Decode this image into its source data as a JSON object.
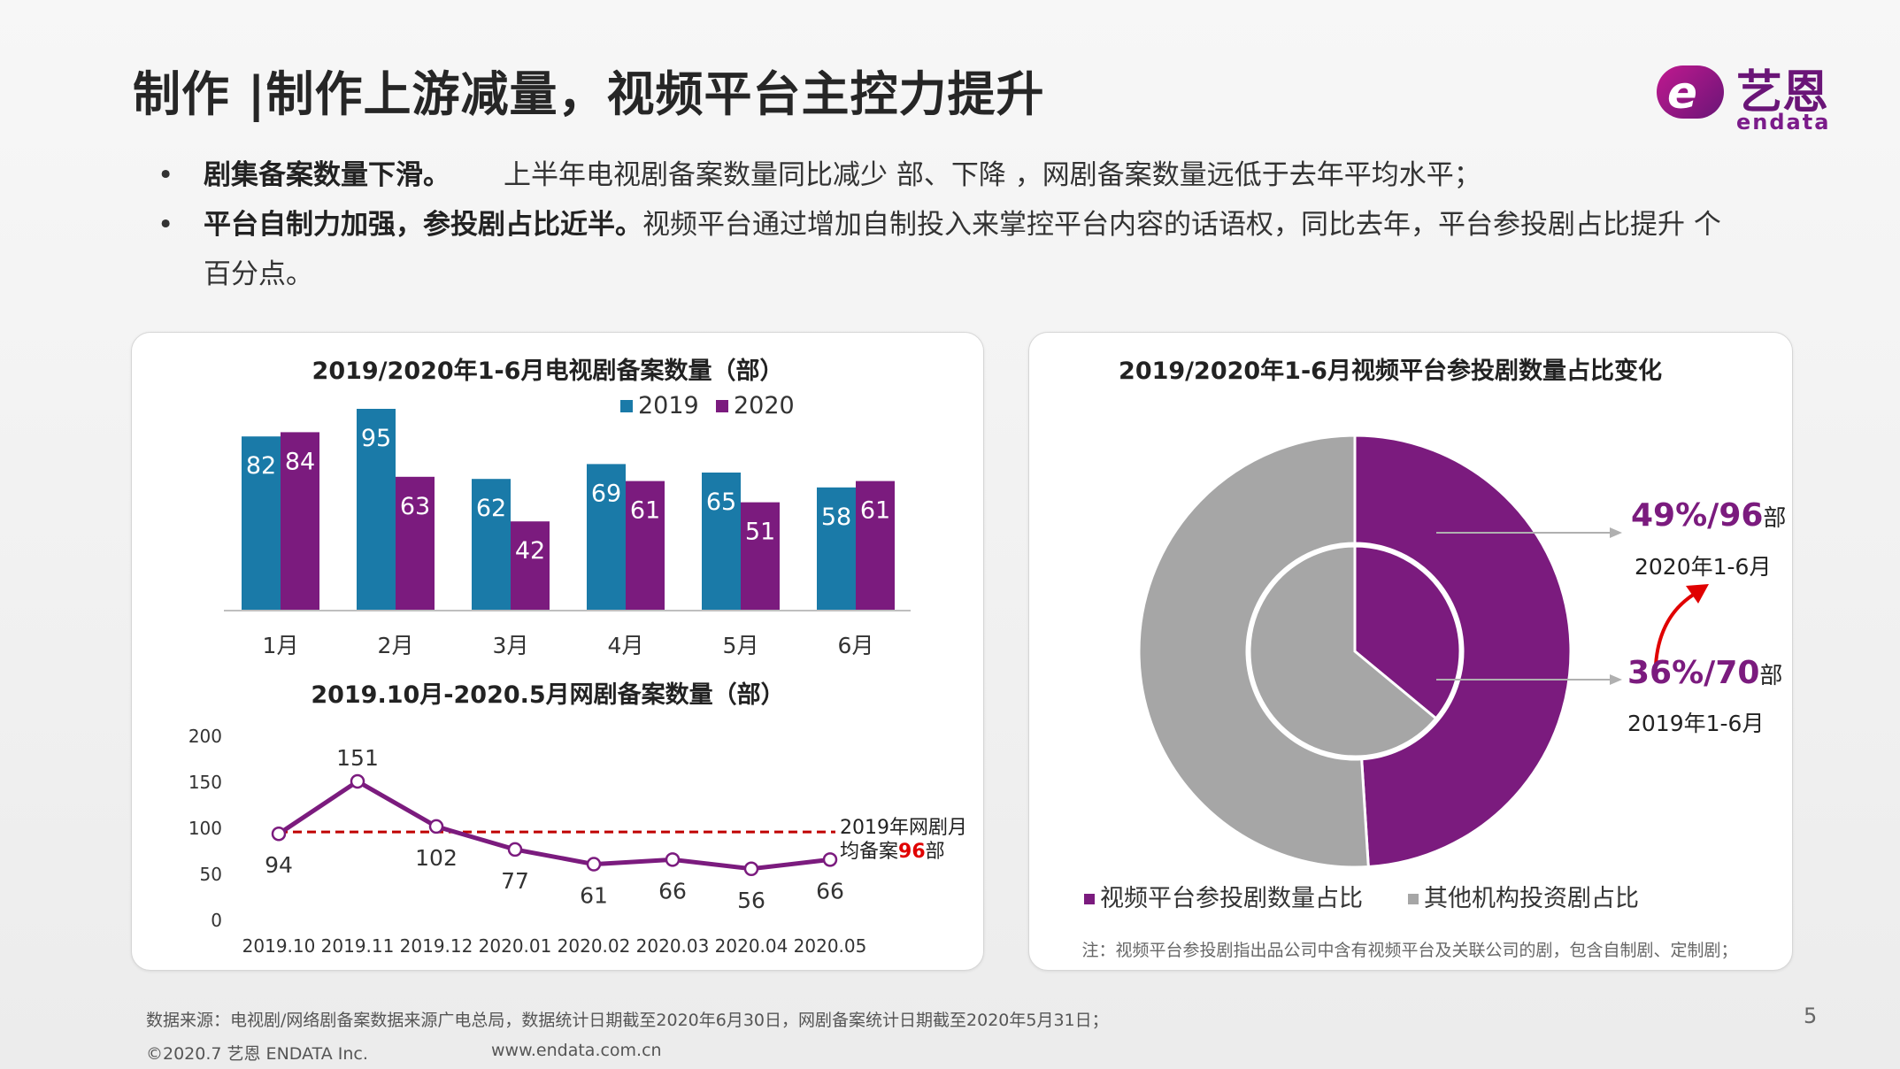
{
  "title": "制作 |制作上游减量，视频平台主控力提升",
  "logo": {
    "cn": "艺恩",
    "en": "endata",
    "mark": "e"
  },
  "bullets": [
    {
      "bold": "剧集备案数量下滑。",
      "text": "上半年电视剧备案数量同比减少 部、下降  ，网剧备案数量远低于去年平均水平；"
    },
    {
      "bold": "平台自制力加强，参投剧占比近半。",
      "text": "视频平台通过增加自制投入来掌控平台内容的话语权，同比去年，平台参投剧占比提升 个",
      "text2": "百分点。"
    }
  ],
  "chart_data": [
    {
      "type": "bar",
      "title": "2019/2020年1-6月电视剧备案数量（部）",
      "categories": [
        "1月",
        "2月",
        "3月",
        "4月",
        "5月",
        "6月"
      ],
      "series": [
        {
          "name": "2019",
          "color": "#1a7aa8",
          "values": [
            82,
            95,
            62,
            69,
            65,
            58
          ]
        },
        {
          "name": "2020",
          "color": "#7b1b7e",
          "values": [
            84,
            63,
            42,
            61,
            51,
            61
          ]
        }
      ],
      "ylim": [
        0,
        100
      ]
    },
    {
      "type": "line",
      "title": "2019.10月-2020.5月网剧备案数量（部）",
      "x": [
        "2019.10",
        "2019.11",
        "2019.12",
        "2020.01",
        "2020.02",
        "2020.03",
        "2020.04",
        "2020.05"
      ],
      "y": [
        94,
        151,
        102,
        77,
        61,
        66,
        56,
        66
      ],
      "yticks": [
        "0",
        "50",
        "100",
        "150",
        "200"
      ],
      "ylim": [
        0,
        200
      ],
      "reference": {
        "value": 96,
        "label1": "2019年网剧月",
        "label2_pre": "均备案",
        "label2_num": "96",
        "label2_post": "部"
      }
    },
    {
      "type": "pie",
      "title": "2019/2020年1-6月视频平台参投剧数量占比变化",
      "outer": {
        "year": "2020年1-6月",
        "pct": "49%/96",
        "unit": "部",
        "share": 0.49
      },
      "inner": {
        "year": "2019年1-6月",
        "pct": "36%/70",
        "unit": "部",
        "share": 0.36
      },
      "legend": [
        "视频平台参投剧数量占比",
        "其他机构投资剧占比"
      ],
      "colors": {
        "platform": "#7b1b7e",
        "other": "#a6a6a6"
      },
      "note": "注：视频平台参投剧指出品公司中含有视频平台及关联公司的剧，包含自制剧、定制剧；"
    }
  ],
  "footer": {
    "source": "数据来源：电视剧/网络剧备案数据来源广电总局，数据统计日期截至2020年6月30日，网剧备案统计日期截至2020年5月31日；",
    "copyright": "©2020.7 艺恩 ENDATA Inc.",
    "url": "www.endata.com.cn",
    "page": "5"
  }
}
